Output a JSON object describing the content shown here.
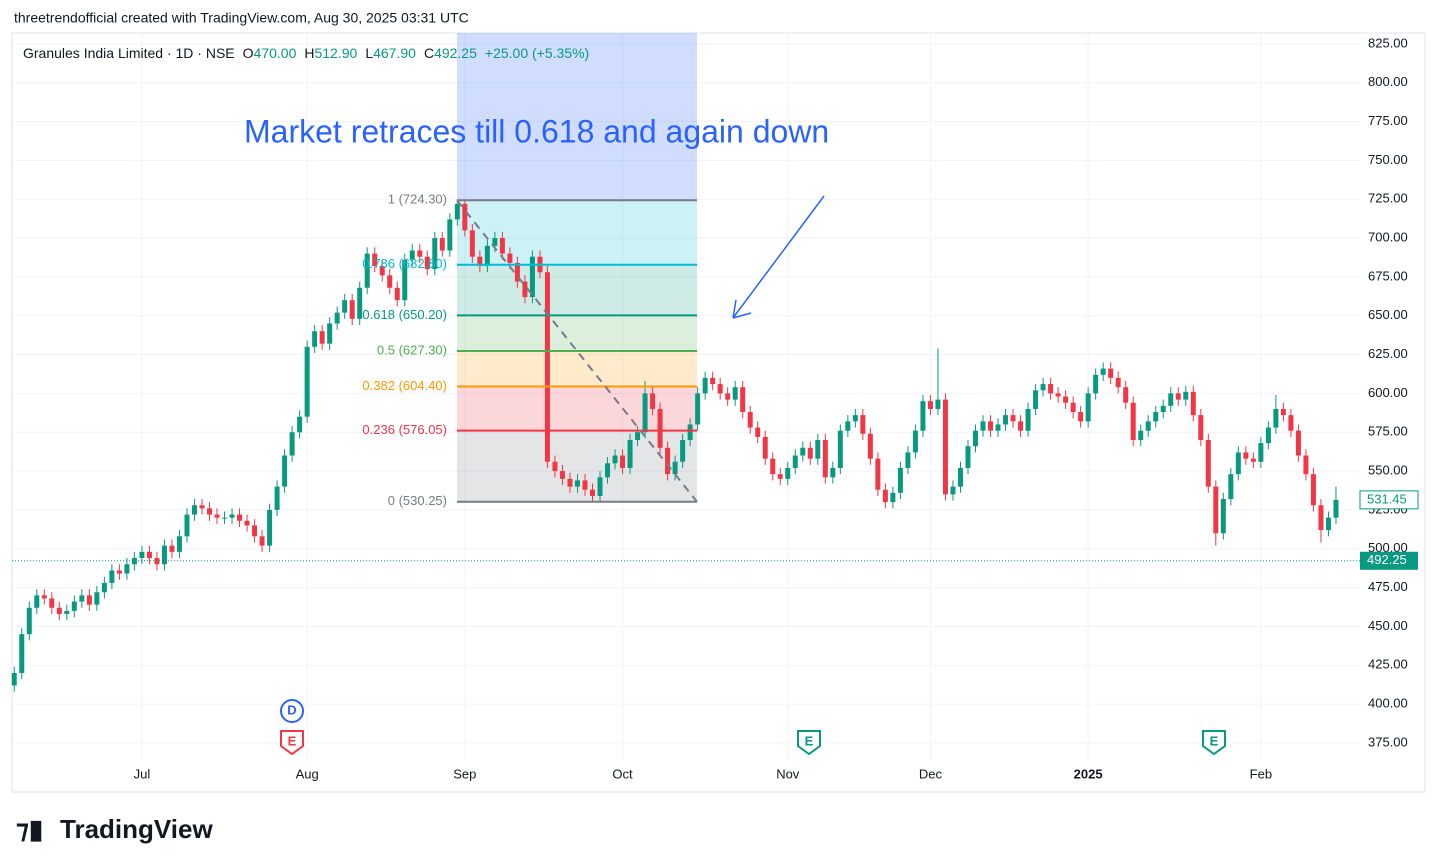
{
  "header": {
    "attribution": "threetrendofficial created with TradingView.com, Aug 30, 2025 03:31 UTC"
  },
  "footer": {
    "logo": "TradingView"
  },
  "chart_data": {
    "type": "candlestick",
    "symbol": "Granules India Limited · 1D · NSE",
    "legend": {
      "o_label": "O",
      "o": "470.00",
      "h_label": "H",
      "h": "512.90",
      "l_label": "L",
      "l": "467.90",
      "c_label": "C",
      "c": "492.25",
      "change": "+25.00 (+5.35%)"
    },
    "annotation": "Market retraces till 0.618 and again down",
    "up_color": "#089981",
    "down_color": "#f23645",
    "grid": true,
    "ylim": [
      364,
      832
    ],
    "yticks": [
      {
        "value": 375,
        "label": "375.00"
      },
      {
        "value": 400,
        "label": "400.00"
      },
      {
        "value": 425,
        "label": "425.00"
      },
      {
        "value": 450,
        "label": "450.00"
      },
      {
        "value": 475,
        "label": "475.00"
      },
      {
        "value": 500,
        "label": "500.00"
      },
      {
        "value": 525,
        "label": "525.00"
      },
      {
        "value": 550,
        "label": "550.00"
      },
      {
        "value": 575,
        "label": "575.00"
      },
      {
        "value": 600,
        "label": "600.00"
      },
      {
        "value": 625,
        "label": "625.00"
      },
      {
        "value": 650,
        "label": "650.00"
      },
      {
        "value": 675,
        "label": "675.00"
      },
      {
        "value": 700,
        "label": "700.00"
      },
      {
        "value": 725,
        "label": "725.00"
      },
      {
        "value": 750,
        "label": "750.00"
      },
      {
        "value": 775,
        "label": "775.00"
      },
      {
        "value": 800,
        "label": "800.00"
      },
      {
        "value": 825,
        "label": "825.00"
      }
    ],
    "xlim": [
      -0.3,
      179.2
    ],
    "xticks": [
      {
        "value": 17,
        "label": "Jul"
      },
      {
        "value": 39,
        "label": "Aug"
      },
      {
        "value": 60,
        "label": "Sep"
      },
      {
        "value": 81,
        "label": "Oct"
      },
      {
        "value": 103,
        "label": "Nov"
      },
      {
        "value": 122,
        "label": "Dec"
      },
      {
        "value": 143,
        "label": "2025"
      },
      {
        "value": 166,
        "label": "Feb"
      }
    ],
    "last_price": 531.45,
    "current_price": 492.25,
    "fib_levels": [
      {
        "label": "1 (724.30)",
        "value": 724.3,
        "color": "#787b86"
      },
      {
        "label": "0.786 (682.80)",
        "value": 682.8,
        "color": "#00bcd4"
      },
      {
        "label": "0.618 (650.20)",
        "value": 650.2,
        "color": "#089981"
      },
      {
        "label": "0.5 (627.30)",
        "value": 627.3,
        "color": "#4caf50"
      },
      {
        "label": "0.382 (604.40)",
        "value": 604.4,
        "color": "#ff9800"
      },
      {
        "label": "0.236 (576.05)",
        "value": 576.05,
        "color": "#f23645"
      },
      {
        "label": "0 (530.25)",
        "value": 530.25,
        "color": "#787b86"
      }
    ],
    "events": [
      {
        "label": "D",
        "color": "#2962ff"
      },
      {
        "label": "E",
        "color": "#f23645"
      },
      {
        "label": "E",
        "color": "#089981"
      },
      {
        "label": "E",
        "color": "#089981"
      }
    ],
    "open": [
      412,
      420,
      445,
      462,
      470,
      468,
      462,
      458,
      460,
      466,
      470,
      464,
      472,
      478,
      486,
      484,
      490,
      494,
      498,
      494,
      490,
      502,
      498,
      508,
      522,
      528,
      526,
      522,
      520,
      520,
      522,
      518,
      515,
      508,
      502,
      525,
      540,
      560,
      575,
      585,
      630,
      640,
      632,
      645,
      652,
      660,
      648,
      668,
      690,
      682,
      676,
      668,
      660,
      686,
      692,
      688,
      680,
      700,
      692,
      712,
      722,
      705,
      688,
      682,
      695,
      700,
      690,
      684,
      672,
      662,
      688,
      678,
      556,
      550,
      545,
      540,
      544,
      538,
      534,
      546,
      555,
      560,
      552,
      570,
      575,
      600,
      590,
      565,
      548,
      556,
      570,
      580,
      600,
      610,
      606,
      600,
      596,
      604,
      588,
      578,
      572,
      558,
      548,
      545,
      552,
      560,
      565,
      558,
      570,
      546,
      552,
      576,
      582,
      586,
      574,
      558,
      538,
      530,
      536,
      552,
      562,
      576,
      595,
      590,
      596,
      535,
      540,
      552,
      566,
      576,
      582,
      576,
      580,
      586,
      582,
      576,
      590,
      602,
      606,
      600,
      598,
      594,
      588,
      582,
      600,
      612,
      616,
      610,
      604,
      594,
      570,
      576,
      582,
      588,
      592,
      600,
      596,
      601,
      586,
      570,
      540,
      510,
      532,
      548,
      562,
      558,
      556,
      568,
      578,
      590,
      586,
      576,
      560,
      548,
      528,
      512,
      520
    ],
    "high": [
      424,
      449,
      466,
      474,
      474,
      472,
      466,
      464,
      470,
      474,
      474,
      476,
      482,
      490,
      490,
      494,
      498,
      502,
      502,
      498,
      506,
      506,
      512,
      526,
      532,
      532,
      530,
      526,
      524,
      526,
      526,
      522,
      519,
      512,
      529,
      544,
      564,
      579,
      589,
      634,
      644,
      644,
      649,
      656,
      664,
      664,
      672,
      694,
      694,
      686,
      680,
      672,
      690,
      696,
      696,
      692,
      704,
      704,
      716,
      724,
      724.3,
      709,
      692,
      699,
      704,
      704,
      694,
      688,
      676,
      692,
      692,
      682,
      560,
      554,
      549,
      548,
      548,
      542,
      550,
      559,
      564,
      564,
      574,
      579,
      608,
      604,
      594,
      569,
      560,
      574,
      584,
      604,
      614,
      614,
      610,
      604,
      608,
      608,
      592,
      582,
      576,
      562,
      552,
      556,
      564,
      569,
      569,
      574,
      574,
      556,
      580,
      586,
      590,
      590,
      578,
      562,
      542,
      540,
      556,
      566,
      580,
      599,
      599,
      629,
      600,
      544,
      556,
      570,
      580,
      586,
      586,
      584,
      590,
      590,
      586,
      594,
      606,
      610,
      610,
      604,
      602,
      598,
      592,
      604,
      616,
      620,
      620,
      614,
      608,
      598,
      580,
      586,
      592,
      596,
      604,
      604,
      605,
      605,
      590,
      574,
      544,
      536,
      552,
      566,
      566,
      562,
      572,
      582,
      599,
      594,
      590,
      580,
      564,
      552,
      532,
      524,
      540
    ],
    "low": [
      408,
      416,
      441,
      458,
      464,
      458,
      454,
      454,
      456,
      462,
      460,
      460,
      468,
      474,
      480,
      480,
      486,
      490,
      490,
      486,
      486,
      494,
      494,
      504,
      518,
      522,
      518,
      516,
      516,
      516,
      514,
      511,
      504,
      498,
      498,
      521,
      536,
      556,
      571,
      581,
      626,
      628,
      628,
      641,
      648,
      644,
      644,
      664,
      678,
      672,
      664,
      656,
      656,
      682,
      684,
      676,
      676,
      688,
      688,
      708,
      701,
      684,
      678,
      678,
      691,
      686,
      680,
      668,
      658,
      658,
      674,
      552,
      546,
      541,
      536,
      536,
      534,
      530.25,
      530,
      542,
      551,
      548,
      548,
      566,
      571,
      586,
      561,
      544,
      544,
      552,
      566,
      576,
      596,
      602,
      596,
      592,
      592,
      584,
      574,
      568,
      554,
      544,
      541,
      541,
      548,
      556,
      554,
      554,
      542,
      542,
      548,
      572,
      578,
      570,
      554,
      534,
      526,
      526,
      532,
      548,
      558,
      572,
      586,
      586,
      531,
      531,
      536,
      548,
      562,
      572,
      572,
      572,
      576,
      578,
      572,
      572,
      586,
      598,
      596,
      594,
      590,
      584,
      578,
      578,
      596,
      608,
      606,
      600,
      590,
      566,
      566,
      572,
      578,
      584,
      588,
      592,
      592,
      582,
      566,
      536,
      502,
      506,
      528,
      544,
      554,
      552,
      552,
      564,
      574,
      582,
      572,
      556,
      544,
      524,
      504,
      508,
      516
    ],
    "close": [
      420,
      445,
      462,
      470,
      468,
      462,
      458,
      460,
      466,
      470,
      464,
      472,
      478,
      486,
      484,
      490,
      494,
      498,
      494,
      490,
      502,
      498,
      508,
      522,
      528,
      526,
      522,
      520,
      520,
      522,
      518,
      515,
      508,
      502,
      525,
      540,
      560,
      575,
      585,
      630,
      640,
      632,
      645,
      652,
      660,
      648,
      668,
      690,
      682,
      676,
      668,
      660,
      686,
      692,
      688,
      680,
      700,
      692,
      712,
      722,
      705,
      688,
      682,
      695,
      700,
      690,
      684,
      672,
      662,
      688,
      678,
      556,
      550,
      545,
      540,
      544,
      538,
      534,
      546,
      555,
      560,
      552,
      570,
      575,
      600,
      590,
      565,
      548,
      556,
      570,
      580,
      600,
      610,
      606,
      600,
      596,
      604,
      588,
      578,
      572,
      558,
      548,
      545,
      552,
      560,
      565,
      558,
      570,
      546,
      552,
      576,
      582,
      586,
      574,
      558,
      538,
      530,
      536,
      552,
      562,
      576,
      595,
      590,
      596,
      535,
      540,
      552,
      566,
      576,
      582,
      576,
      580,
      586,
      582,
      576,
      590,
      602,
      606,
      600,
      598,
      594,
      588,
      582,
      600,
      612,
      616,
      610,
      604,
      594,
      570,
      576,
      582,
      588,
      592,
      600,
      596,
      601,
      586,
      570,
      540,
      510,
      532,
      548,
      562,
      558,
      556,
      568,
      578,
      590,
      586,
      576,
      560,
      548,
      528,
      512,
      520,
      531.45
    ]
  }
}
